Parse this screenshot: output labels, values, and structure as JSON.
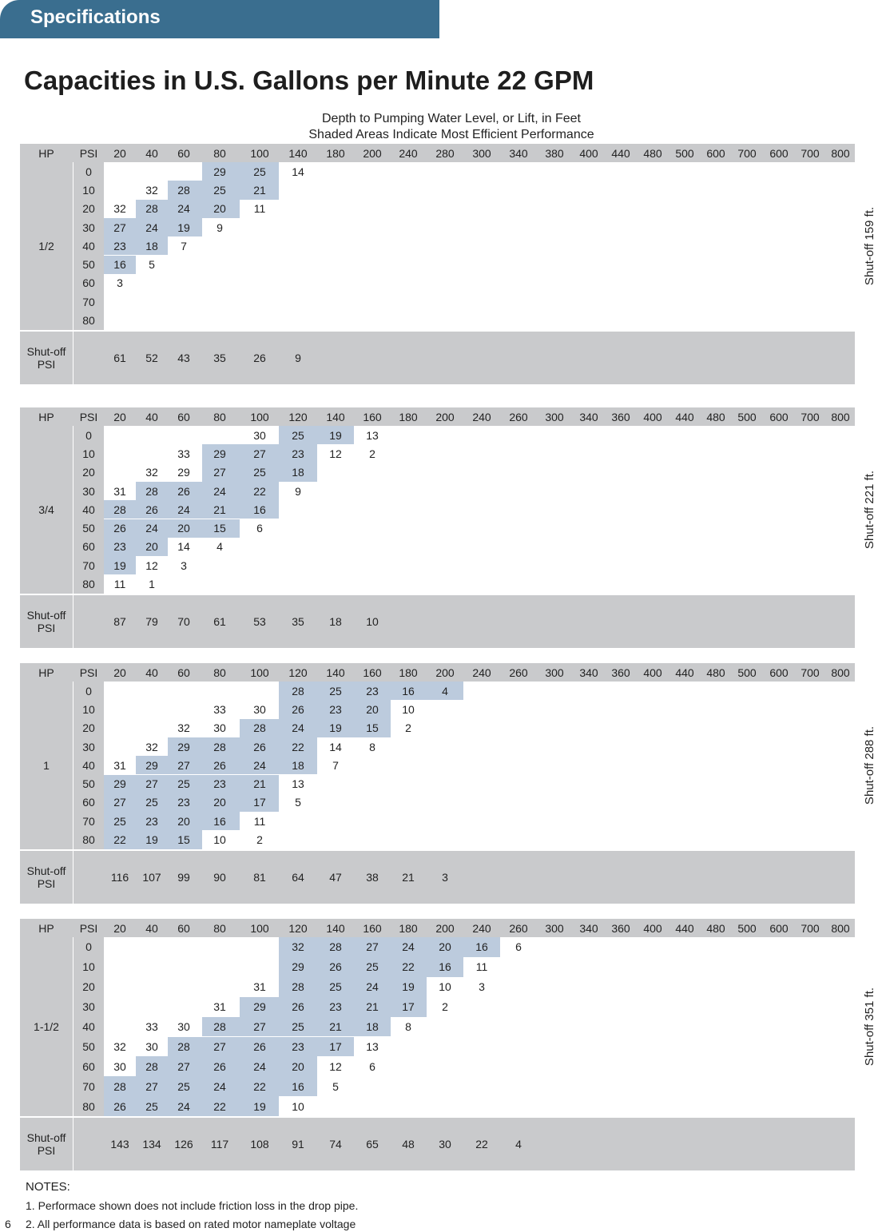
{
  "header": {
    "tab": "Specifications",
    "title": "Capacities in U.S. Gallons per Minute 22 GPM",
    "subtitle_lines": [
      "Depth to Pumping Water Level, or Lift, in Feet",
      "Shaded Areas Indicate Most Efficient Performance"
    ]
  },
  "tables": [
    {
      "hp_header": "HP",
      "psi_header": "PSI",
      "hp": "1/2",
      "side_label": "Shut-off 159 ft.",
      "shutoff_label": "Shut-off PSI",
      "depths": [
        20,
        40,
        60,
        80,
        100,
        140,
        180,
        200,
        240,
        280,
        300,
        340,
        380,
        400,
        440,
        480,
        500,
        600,
        700,
        600,
        700,
        800
      ],
      "rows": [
        {
          "psi": 0,
          "values": [
            null,
            null,
            null,
            29,
            25,
            14
          ],
          "shade": [
            3,
            4
          ]
        },
        {
          "psi": 10,
          "values": [
            null,
            32,
            28,
            25,
            21
          ],
          "shade": [
            2,
            4
          ]
        },
        {
          "psi": 20,
          "values": [
            32,
            28,
            24,
            20,
            11
          ],
          "shade": [
            1,
            3
          ]
        },
        {
          "psi": 30,
          "values": [
            27,
            24,
            19,
            9
          ],
          "shade": [
            0,
            2
          ]
        },
        {
          "psi": 40,
          "values": [
            23,
            18,
            7
          ],
          "shade": [
            0,
            1
          ]
        },
        {
          "psi": 50,
          "values": [
            16,
            5
          ],
          "shade": [
            0,
            0
          ]
        },
        {
          "psi": 60,
          "values": [
            3
          ]
        },
        {
          "psi": 70,
          "values": []
        },
        {
          "psi": 80,
          "values": []
        }
      ],
      "shutoff_values": [
        61,
        52,
        43,
        35,
        26,
        9
      ]
    },
    {
      "hp_header": "HP",
      "psi_header": "PSI",
      "hp": "3/4",
      "side_label": "Shut-off 221 ft.",
      "shutoff_label": "Shut-off PSI",
      "depths": [
        20,
        40,
        60,
        80,
        100,
        120,
        140,
        160,
        180,
        200,
        240,
        260,
        300,
        340,
        360,
        400,
        440,
        480,
        500,
        600,
        700,
        800
      ],
      "rows": [
        {
          "psi": 0,
          "values": [
            null,
            null,
            null,
            null,
            30,
            25,
            19,
            13
          ],
          "shade": [
            5,
            6
          ]
        },
        {
          "psi": 10,
          "values": [
            null,
            null,
            33,
            29,
            27,
            23,
            12,
            2
          ],
          "shade": [
            3,
            5
          ]
        },
        {
          "psi": 20,
          "values": [
            null,
            32,
            29,
            27,
            25,
            18
          ],
          "shade": [
            3,
            5
          ]
        },
        {
          "psi": 30,
          "values": [
            31,
            28,
            26,
            24,
            22,
            9
          ],
          "shade": [
            1,
            4
          ]
        },
        {
          "psi": 40,
          "values": [
            28,
            26,
            24,
            21,
            16
          ],
          "shade": [
            0,
            4
          ]
        },
        {
          "psi": 50,
          "values": [
            26,
            24,
            20,
            15,
            6
          ],
          "shade": [
            0,
            3
          ]
        },
        {
          "psi": 60,
          "values": [
            23,
            20,
            14,
            4
          ],
          "shade": [
            0,
            1
          ]
        },
        {
          "psi": 70,
          "values": [
            19,
            12,
            3
          ],
          "shade": [
            0,
            0
          ]
        },
        {
          "psi": 80,
          "values": [
            11,
            1
          ]
        }
      ],
      "shutoff_values": [
        87,
        79,
        70,
        61,
        53,
        35,
        18,
        10
      ]
    },
    {
      "hp_header": "HP",
      "psi_header": "PSI",
      "hp": "1",
      "side_label": "Shut-off 288 ft.",
      "shutoff_label": "Shut-off PSI",
      "depths": [
        20,
        40,
        60,
        80,
        100,
        120,
        140,
        160,
        180,
        200,
        240,
        260,
        300,
        340,
        360,
        400,
        440,
        480,
        500,
        600,
        700,
        800
      ],
      "rows": [
        {
          "psi": 0,
          "values": [
            null,
            null,
            null,
            null,
            null,
            28,
            25,
            23,
            16,
            4
          ],
          "shade": [
            5,
            9
          ]
        },
        {
          "psi": 10,
          "values": [
            null,
            null,
            null,
            33,
            30,
            26,
            23,
            20,
            10
          ],
          "shade": [
            5,
            7
          ]
        },
        {
          "psi": 20,
          "values": [
            null,
            null,
            32,
            30,
            28,
            24,
            19,
            15,
            2
          ],
          "shade": [
            4,
            7
          ]
        },
        {
          "psi": 30,
          "values": [
            null,
            32,
            29,
            28,
            26,
            22,
            14,
            8
          ],
          "shade": [
            2,
            5
          ]
        },
        {
          "psi": 40,
          "values": [
            31,
            29,
            27,
            26,
            24,
            18,
            7
          ],
          "shade": [
            1,
            5
          ]
        },
        {
          "psi": 50,
          "values": [
            29,
            27,
            25,
            23,
            21,
            13
          ],
          "shade": [
            0,
            4
          ]
        },
        {
          "psi": 60,
          "values": [
            27,
            25,
            23,
            20,
            17,
            5
          ],
          "shade": [
            0,
            4
          ]
        },
        {
          "psi": 70,
          "values": [
            25,
            23,
            20,
            16,
            11
          ],
          "shade": [
            0,
            3
          ]
        },
        {
          "psi": 80,
          "values": [
            22,
            19,
            15,
            10,
            2
          ],
          "shade": [
            0,
            2
          ]
        }
      ],
      "shutoff_values": [
        116,
        107,
        99,
        90,
        81,
        64,
        47,
        38,
        21,
        3
      ]
    },
    {
      "hp_header": "HP",
      "psi_header": "PSI",
      "hp": "1-1/2",
      "side_label": "Shut-off 351 ft.",
      "shutoff_label": "Shut-off PSI",
      "depths": [
        20,
        40,
        60,
        80,
        100,
        120,
        140,
        160,
        180,
        200,
        240,
        260,
        300,
        340,
        360,
        400,
        440,
        480,
        500,
        600,
        700,
        800
      ],
      "rows": [
        {
          "psi": 0,
          "values": [
            null,
            null,
            null,
            null,
            null,
            32,
            28,
            27,
            24,
            20,
            16,
            6
          ],
          "shade": [
            5,
            10
          ]
        },
        {
          "psi": 10,
          "values": [
            null,
            null,
            null,
            null,
            null,
            29,
            26,
            25,
            22,
            16,
            11
          ],
          "shade": [
            5,
            9
          ]
        },
        {
          "psi": 20,
          "values": [
            null,
            null,
            null,
            null,
            31,
            28,
            25,
            24,
            19,
            10,
            3
          ],
          "shade": [
            5,
            8
          ]
        },
        {
          "psi": 30,
          "values": [
            null,
            null,
            null,
            31,
            29,
            26,
            23,
            21,
            17,
            2
          ],
          "shade": [
            4,
            8
          ]
        },
        {
          "psi": 40,
          "values": [
            null,
            33,
            30,
            28,
            27,
            25,
            21,
            18,
            8
          ],
          "shade": [
            3,
            7
          ]
        },
        {
          "psi": 50,
          "values": [
            32,
            30,
            28,
            27,
            26,
            23,
            17,
            13
          ],
          "shade": [
            2,
            6
          ]
        },
        {
          "psi": 60,
          "values": [
            30,
            28,
            27,
            26,
            24,
            20,
            12,
            6
          ],
          "shade": [
            1,
            5
          ]
        },
        {
          "psi": 70,
          "values": [
            28,
            27,
            25,
            24,
            22,
            16,
            5
          ],
          "shade": [
            0,
            5
          ]
        },
        {
          "psi": 80,
          "values": [
            26,
            25,
            24,
            22,
            19,
            10
          ],
          "shade": [
            0,
            4
          ]
        }
      ],
      "shutoff_values": [
        143,
        134,
        126,
        117,
        108,
        91,
        74,
        65,
        48,
        30,
        22,
        4
      ]
    }
  ],
  "notes": {
    "heading": "NOTES:",
    "items": [
      "1. Performace shown does not include friction loss in the drop pipe.",
      "2. All performance data is based on rated motor nameplate voltage"
    ]
  },
  "page_number": "6"
}
